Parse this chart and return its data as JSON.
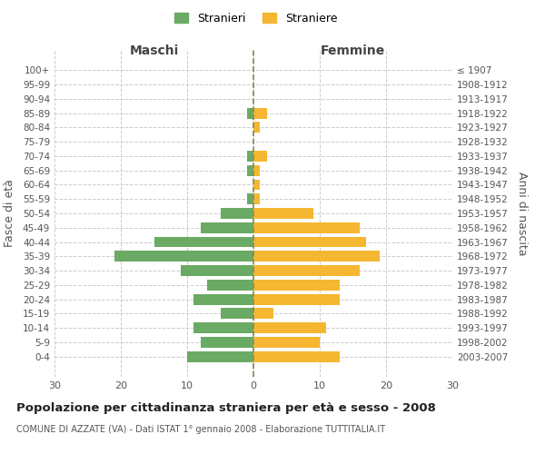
{
  "age_groups": [
    "100+",
    "95-99",
    "90-94",
    "85-89",
    "80-84",
    "75-79",
    "70-74",
    "65-69",
    "60-64",
    "55-59",
    "50-54",
    "45-49",
    "40-44",
    "35-39",
    "30-34",
    "25-29",
    "20-24",
    "15-19",
    "10-14",
    "5-9",
    "0-4"
  ],
  "birth_years": [
    "≤ 1907",
    "1908-1912",
    "1913-1917",
    "1918-1922",
    "1923-1927",
    "1928-1932",
    "1933-1937",
    "1938-1942",
    "1943-1947",
    "1948-1952",
    "1953-1957",
    "1958-1962",
    "1963-1967",
    "1968-1972",
    "1973-1977",
    "1978-1982",
    "1983-1987",
    "1988-1992",
    "1993-1997",
    "1998-2002",
    "2003-2007"
  ],
  "maschi": [
    0,
    0,
    0,
    1,
    0,
    0,
    1,
    1,
    0,
    1,
    5,
    8,
    15,
    21,
    11,
    7,
    9,
    5,
    9,
    8,
    10
  ],
  "femmine": [
    0,
    0,
    0,
    2,
    1,
    0,
    2,
    1,
    1,
    1,
    9,
    16,
    17,
    19,
    16,
    13,
    13,
    3,
    11,
    10,
    13
  ],
  "maschi_color": "#6aaa64",
  "femmine_color": "#f5b731",
  "background_color": "#ffffff",
  "grid_color": "#cccccc",
  "zero_line_color": "#888855",
  "title": "Popolazione per cittadinanza straniera per età e sesso - 2008",
  "subtitle": "COMUNE DI AZZATE (VA) - Dati ISTAT 1° gennaio 2008 - Elaborazione TUTTITALIA.IT",
  "xlabel_left": "Maschi",
  "xlabel_right": "Femmine",
  "ylabel_left": "Fasce di età",
  "ylabel_right": "Anni di nascita",
  "legend_maschi": "Stranieri",
  "legend_femmine": "Straniere",
  "xlim": 30,
  "bar_height": 0.75
}
